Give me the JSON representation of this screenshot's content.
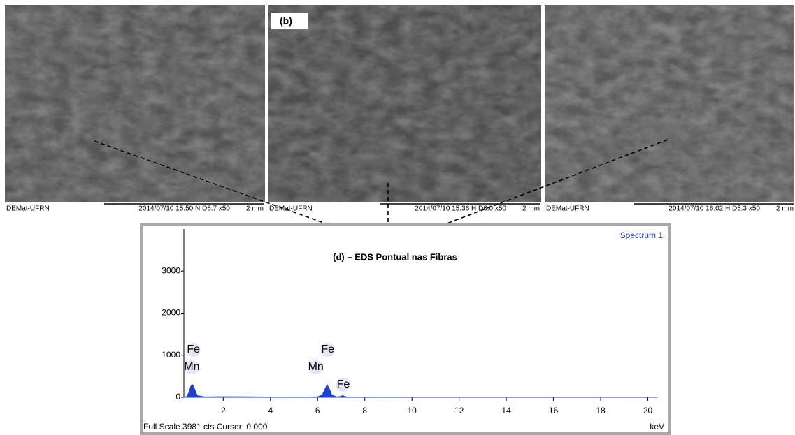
{
  "images": [
    {
      "caption_left": "DEMat-UFRN",
      "caption_info": "2014/07/10    15:50  N    D5.7    x50",
      "scale": "2 mm"
    },
    {
      "label": "(b)",
      "caption_left": "DEMat-UFRN",
      "caption_info": "2014/07/10    15:36  H    D6.0    x50",
      "scale": "2 mm"
    },
    {
      "caption_left": "DEMat-UFRN",
      "caption_info": "2014/07/10    16:02  H    D5.3    x50",
      "scale": "2 mm"
    }
  ],
  "chart_data": {
    "type": "area",
    "title": "(d) – EDS Pontual nas Fibras",
    "footer": "Full Scale 3981 cts Cursor: 0.000",
    "x_label": "keV",
    "x": [
      0.33,
      0.45,
      0.55,
      0.62,
      0.7,
      0.78,
      0.9,
      1.2,
      2,
      3,
      4,
      5,
      6.0,
      6.2,
      6.3,
      6.4,
      6.5,
      6.6,
      6.8,
      6.98,
      7.06,
      7.14,
      7.3,
      8,
      10,
      14,
      20.4
    ],
    "series": [
      {
        "name": "Spectrum 1",
        "color": "#1f3fd0",
        "values": [
          0,
          20,
          120,
          260,
          300,
          200,
          40,
          10,
          15,
          12,
          8,
          6,
          10,
          60,
          180,
          300,
          200,
          60,
          10,
          20,
          45,
          20,
          5,
          4,
          3,
          2,
          1
        ]
      }
    ],
    "annotations": [
      {
        "text": "Fe",
        "x": 0.705,
        "level": 3
      },
      {
        "text": "Mn",
        "x": 0.637,
        "level": 2
      },
      {
        "text": "Fe",
        "x": 6.398,
        "level": 3
      },
      {
        "text": "Mn",
        "x": 5.894,
        "level": 2
      },
      {
        "text": "Fe",
        "x": 7.057,
        "level": 1
      }
    ],
    "xlim": [
      0.33,
      20.4
    ],
    "xticks": [
      2,
      4,
      6,
      8,
      10,
      12,
      14,
      16,
      18,
      20
    ],
    "ylim": [
      0,
      4000
    ],
    "yticks": [
      0,
      1000,
      2000,
      3000
    ]
  }
}
